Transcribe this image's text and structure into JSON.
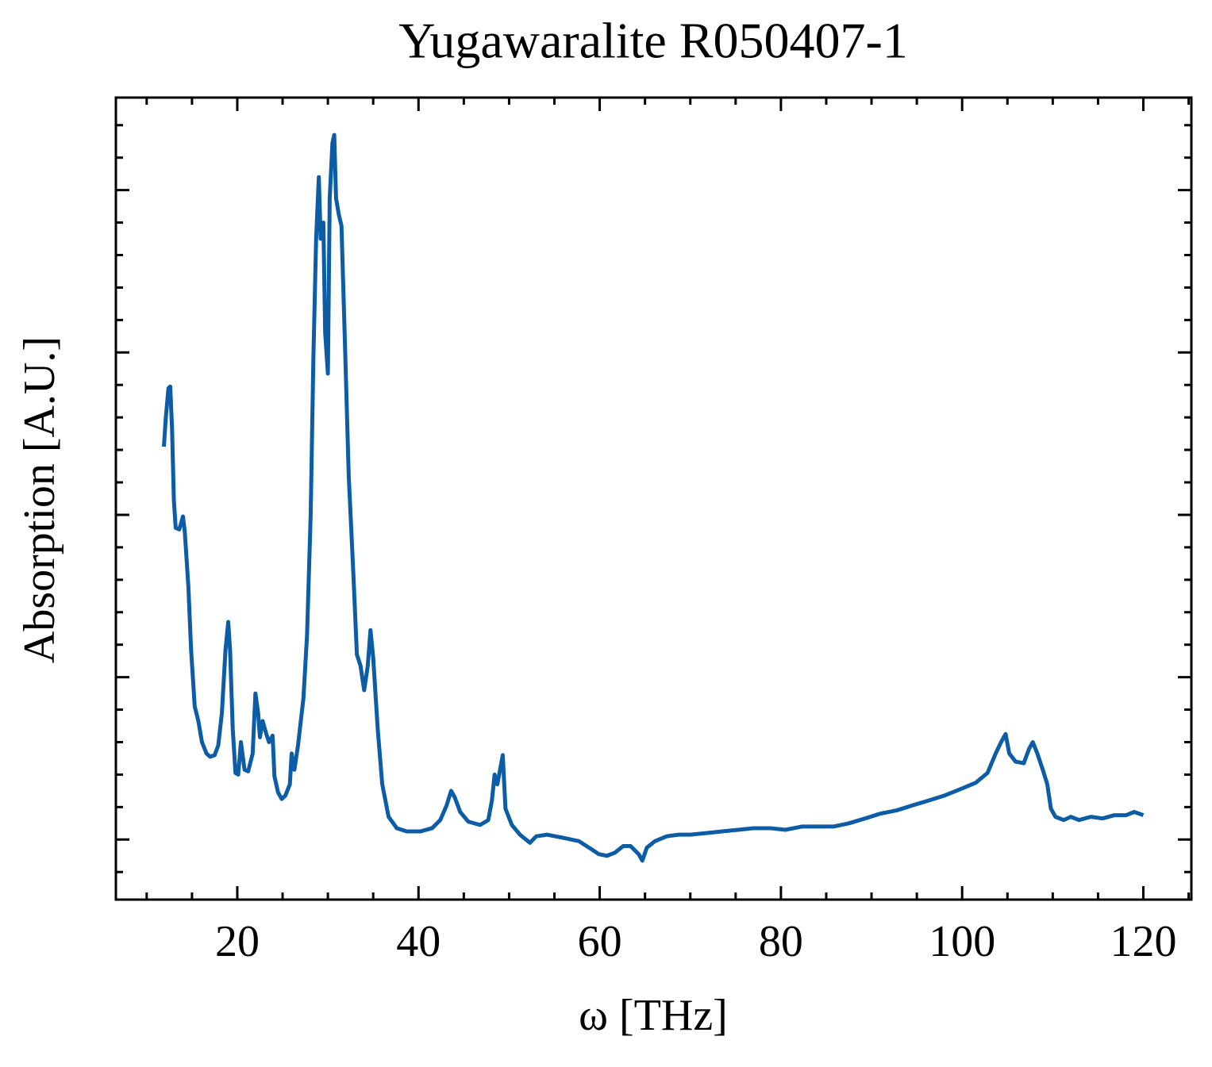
{
  "chart_data": {
    "type": "line",
    "title": "Yugawaralite R050407-1",
    "xlabel": "ω [THz]",
    "ylabel": "Absorption [A.U.]",
    "color": "#0c5da5",
    "x": [
      11.9,
      12.1,
      12.4,
      12.6,
      12.8,
      13.0,
      13.2,
      13.6,
      14.0,
      14.2,
      14.6,
      14.9,
      15.3,
      15.7,
      16.1,
      16.6,
      17.0,
      17.5,
      17.9,
      18.3,
      18.7,
      19.0,
      19.2,
      19.5,
      19.8,
      20.1,
      20.4,
      20.8,
      21.2,
      21.7,
      22.0,
      22.3,
      22.5,
      22.8,
      23.2,
      23.5,
      23.9,
      24.1,
      24.5,
      24.9,
      25.3,
      25.8,
      26.0,
      26.3,
      26.7,
      27.3,
      27.7,
      28.1,
      28.4,
      28.7,
      29.0,
      29.2,
      29.5,
      29.7,
      30.0,
      30.2,
      30.5,
      30.7,
      30.9,
      31.2,
      31.5,
      31.9,
      32.3,
      32.8,
      33.2,
      33.6,
      34.0,
      34.4,
      34.7,
      35.0,
      35.5,
      36.0,
      36.7,
      37.6,
      38.7,
      40.2,
      41.5,
      42.4,
      43.1,
      43.6,
      44.0,
      44.6,
      45.5,
      46.8,
      47.7,
      48.1,
      48.4,
      48.7,
      49.0,
      49.3,
      49.6,
      50.3,
      51.2,
      52.3,
      53.0,
      54.2,
      56.0,
      57.7,
      59.1,
      59.9,
      60.8,
      61.7,
      62.6,
      63.4,
      64.3,
      64.7,
      65.2,
      66.1,
      67.4,
      68.7,
      70.0,
      71.8,
      73.5,
      75.3,
      77.0,
      78.8,
      80.5,
      82.3,
      84.0,
      85.8,
      87.5,
      89.3,
      91.0,
      92.8,
      94.5,
      96.3,
      98.0,
      99.8,
      101.5,
      102.8,
      103.7,
      104.3,
      104.8,
      105.2,
      105.9,
      106.8,
      107.4,
      107.8,
      108.3,
      108.9,
      109.4,
      109.8,
      110.3,
      111.2,
      112.0,
      112.9,
      114.2,
      115.5,
      116.8,
      118.1,
      119.0,
      120.0
    ],
    "values": [
      2.42,
      2.59,
      2.78,
      2.79,
      2.53,
      2.09,
      1.92,
      1.91,
      1.99,
      1.9,
      1.56,
      1.17,
      0.82,
      0.73,
      0.6,
      0.53,
      0.51,
      0.52,
      0.58,
      0.78,
      1.17,
      1.34,
      1.17,
      0.68,
      0.41,
      0.4,
      0.6,
      0.43,
      0.42,
      0.53,
      0.9,
      0.78,
      0.63,
      0.73,
      0.65,
      0.6,
      0.64,
      0.39,
      0.29,
      0.25,
      0.27,
      0.34,
      0.53,
      0.43,
      0.58,
      0.87,
      1.26,
      2.0,
      2.97,
      3.7,
      4.08,
      3.7,
      3.8,
      3.12,
      2.87,
      3.95,
      4.29,
      4.34,
      3.95,
      3.85,
      3.78,
      3.02,
      2.24,
      1.65,
      1.14,
      1.07,
      0.92,
      1.07,
      1.29,
      1.12,
      0.68,
      0.34,
      0.14,
      0.07,
      0.05,
      0.05,
      0.07,
      0.12,
      0.21,
      0.3,
      0.26,
      0.17,
      0.11,
      0.09,
      0.12,
      0.24,
      0.4,
      0.34,
      0.43,
      0.52,
      0.19,
      0.09,
      0.03,
      -0.02,
      0.02,
      0.03,
      0.01,
      -0.01,
      -0.06,
      -0.09,
      -0.1,
      -0.08,
      -0.04,
      -0.04,
      -0.09,
      -0.13,
      -0.05,
      -0.01,
      0.02,
      0.03,
      0.03,
      0.04,
      0.05,
      0.06,
      0.07,
      0.07,
      0.06,
      0.08,
      0.08,
      0.08,
      0.1,
      0.13,
      0.16,
      0.18,
      0.21,
      0.24,
      0.27,
      0.31,
      0.35,
      0.41,
      0.53,
      0.6,
      0.65,
      0.53,
      0.48,
      0.47,
      0.56,
      0.6,
      0.53,
      0.43,
      0.34,
      0.19,
      0.14,
      0.12,
      0.14,
      0.12,
      0.14,
      0.13,
      0.15,
      0.15,
      0.17,
      0.15
    ],
    "xlim": [
      6.6,
      125.3
    ],
    "xticks": [
      20,
      40,
      60,
      80,
      100,
      120
    ],
    "xticks_minor": [
      10,
      15,
      25,
      30,
      35,
      45,
      50,
      55,
      65,
      70,
      75,
      85,
      90,
      95,
      105,
      110,
      115,
      125
    ],
    "ylim": [
      -0.37,
      4.57
    ],
    "yticks": [
      0,
      1,
      2,
      3,
      4
    ],
    "ytick_labels": false,
    "yticks_minor": [
      -0.2,
      0.2,
      0.4,
      0.6,
      0.8,
      1.2,
      1.4,
      1.6,
      1.8,
      2.2,
      2.4,
      2.6,
      2.8,
      3.2,
      3.4,
      3.6,
      3.8,
      4.2,
      4.4
    ]
  }
}
